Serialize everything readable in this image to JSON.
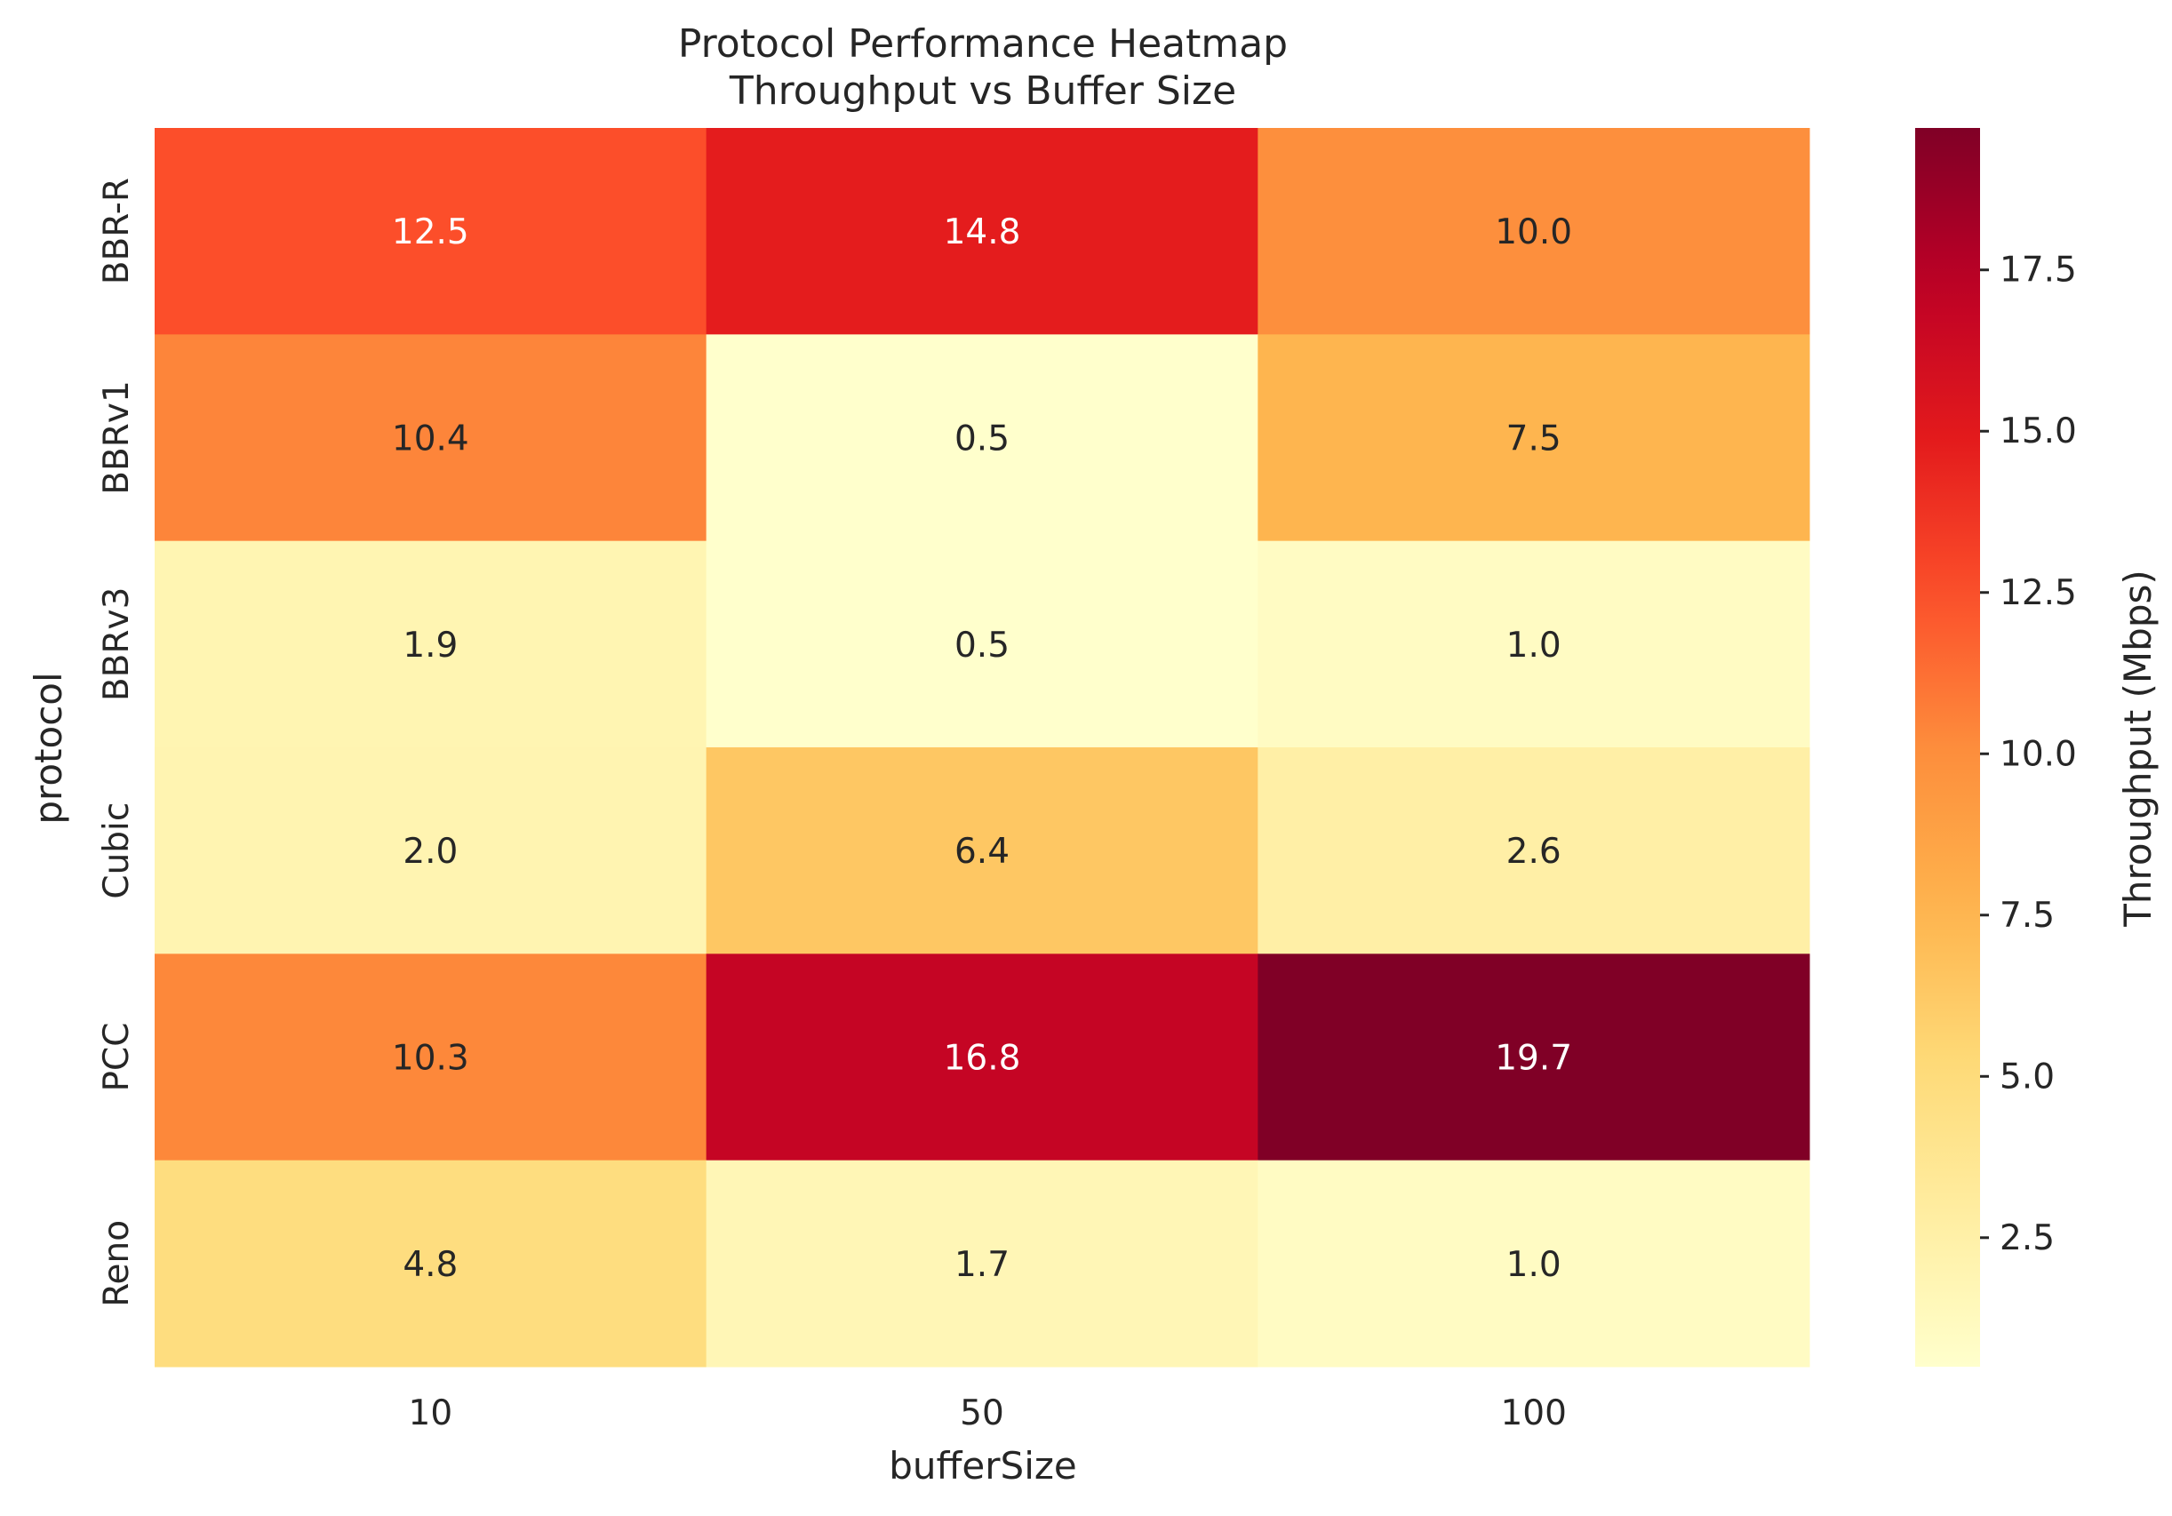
{
  "chart_data": {
    "type": "heatmap",
    "title": "Protocol Performance Heatmap",
    "subtitle": "Throughput vs Buffer Size",
    "xlabel": "bufferSize",
    "ylabel": "protocol",
    "x_categories": [
      "10",
      "50",
      "100"
    ],
    "y_categories": [
      "BBR-R",
      "BBRv1",
      "BBRv3",
      "Cubic",
      "PCC",
      "Reno"
    ],
    "values": [
      [
        12.5,
        14.8,
        10.0
      ],
      [
        10.4,
        0.5,
        7.5
      ],
      [
        1.9,
        0.5,
        1.0
      ],
      [
        2.0,
        6.4,
        2.6
      ],
      [
        10.3,
        16.8,
        19.7
      ],
      [
        4.8,
        1.7,
        1.0
      ]
    ],
    "value_labels": [
      [
        "12.5",
        "14.8",
        "10.0"
      ],
      [
        "10.4",
        "0.5",
        "7.5"
      ],
      [
        "1.9",
        "0.5",
        "1.0"
      ],
      [
        "2.0",
        "6.4",
        "2.6"
      ],
      [
        "10.3",
        "16.8",
        "19.7"
      ],
      [
        "4.8",
        "1.7",
        "1.0"
      ]
    ],
    "colorbar": {
      "label": "Throughput (Mbps)",
      "colormap": "YlOrRd",
      "range": [
        0.5,
        19.7
      ],
      "ticks": [
        2.5,
        5.0,
        7.5,
        10.0,
        12.5,
        15.0,
        17.5
      ],
      "tick_labels": [
        "2.5",
        "5.0",
        "7.5",
        "10.0",
        "12.5",
        "15.0",
        "17.5"
      ]
    },
    "grid": false
  }
}
